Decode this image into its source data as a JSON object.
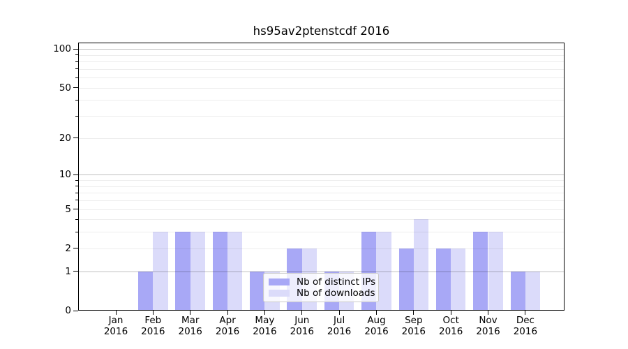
{
  "figure": {
    "title": "hs95av2ptenstcdf 2016"
  },
  "chart_data": {
    "type": "bar",
    "title": "hs95av2ptenstcdf 2016",
    "xlabel": "",
    "ylabel": "",
    "categories": [
      "Jan 2016",
      "Feb 2016",
      "Mar 2016",
      "Apr 2016",
      "May 2016",
      "Jun 2016",
      "Jul 2016",
      "Aug 2016",
      "Sep 2016",
      "Oct 2016",
      "Nov 2016",
      "Dec 2016"
    ],
    "series": [
      {
        "name": "Nb of distinct IPs",
        "color": "#a8a8f6",
        "values": [
          0,
          1,
          3,
          3,
          1,
          2,
          1,
          3,
          2,
          2,
          3,
          1
        ]
      },
      {
        "name": "Nb of downloads",
        "color": "#dbdbfa",
        "values": [
          0,
          3,
          3,
          3,
          1,
          2,
          1,
          3,
          4,
          2,
          3,
          1
        ]
      }
    ],
    "y_scale": "log1p",
    "ylim": [
      0,
      112
    ],
    "y_axis": {
      "labeled_ticks": [
        0,
        1,
        2,
        5,
        10,
        20,
        50,
        100
      ],
      "major_gridlines": [
        1,
        10,
        100
      ],
      "minor_gridlines": [
        2,
        3,
        4,
        5,
        6,
        7,
        8,
        9,
        20,
        30,
        40,
        50,
        60,
        70,
        80,
        90
      ],
      "max_equivalent": 112
    },
    "grid": true,
    "legend": {
      "position": "lower-center-inside",
      "items": [
        "Nb of distinct IPs",
        "Nb of downloads"
      ]
    }
  },
  "colors": {
    "ips_bar": "#a8a8f6",
    "downloads_bar": "#dbdbfa",
    "major_grid": "#bfbfbf",
    "minor_grid": "#ededed",
    "spine": "#000000",
    "background": "#ffffff"
  }
}
